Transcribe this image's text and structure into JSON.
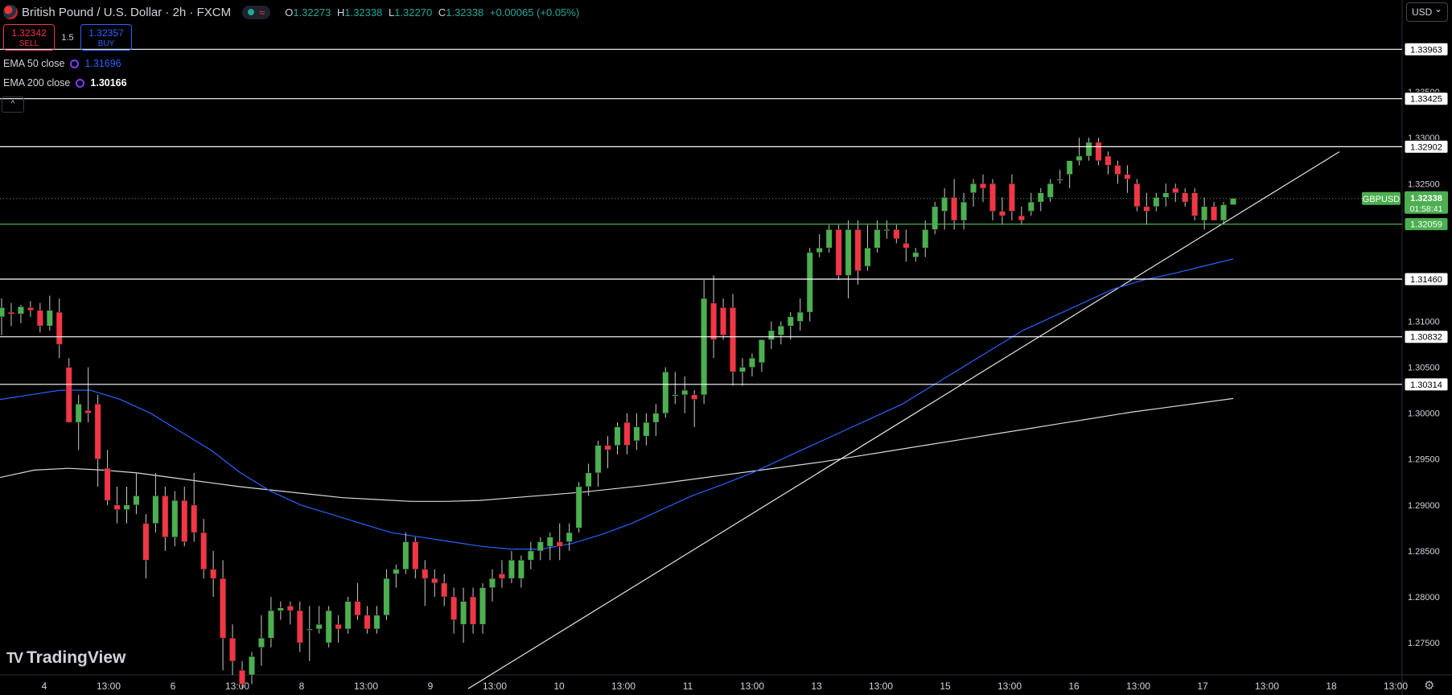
{
  "header": {
    "symbol_title": "British Pound / U.S. Dollar · 2h · FXCM",
    "open_label": "O",
    "open": "1.32273",
    "high_label": "H",
    "high": "1.32338",
    "low_label": "L",
    "low": "1.32270",
    "close_label": "C",
    "close": "1.32338",
    "change": "+0.00065 (+0.05%)",
    "status_icon": "market-open-dot",
    "wave_icon": "≈"
  },
  "trade": {
    "sell_price": "1.32342",
    "sell_label": "SELL",
    "spread": "1.5",
    "buy_price": "1.32357",
    "buy_label": "BUY"
  },
  "indicators": {
    "ema50": {
      "label": "EMA 50 close",
      "value": "1.31696",
      "color": "#2962ff"
    },
    "ema200": {
      "label": "EMA 200 close",
      "value": "1.30166",
      "color": "#ffffff"
    },
    "collapse_icon": "^"
  },
  "currency_button": "USD",
  "logo_text": "TradingView",
  "colors": {
    "up": "#4caf50",
    "down": "#f23645",
    "bg": "#000000",
    "ema50": "#2962ff",
    "ema200": "#d9d9d9",
    "level": "#ffffff",
    "green_level": "#4caf50"
  },
  "chart_data": {
    "type": "candlestick",
    "symbol": "GBPUSD",
    "timeframe": "2h",
    "ylim": [
      1.2715,
      1.345
    ],
    "y_ticks": [
      "1.27500",
      "1.28000",
      "1.28500",
      "1.29000",
      "1.29500",
      "1.30000",
      "1.30500",
      "1.31000",
      "1.32500",
      "1.33000",
      "1.33500"
    ],
    "x_ticks": [
      "4",
      "13:00",
      "6",
      "13:00",
      "8",
      "13:00",
      "9",
      "13:00",
      "10",
      "13:00",
      "11",
      "13:00",
      "13",
      "13:00",
      "15",
      "13:00",
      "16",
      "13:00",
      "17",
      "13:00",
      "18",
      "13:00"
    ],
    "horizontal_levels": [
      {
        "value": "1.33963"
      },
      {
        "value": "1.33425"
      },
      {
        "value": "1.32902"
      },
      {
        "value": "1.32059",
        "color": "#4caf50"
      },
      {
        "value": "1.31460"
      },
      {
        "value": "1.30832"
      },
      {
        "value": "1.30314"
      }
    ],
    "last_price": {
      "symbol": "GBPUSD",
      "value": "1.32338",
      "countdown": "01:58:41"
    },
    "candles": [
      [
        1.3105,
        1.3125,
        1.3085,
        1.3115
      ],
      [
        1.311,
        1.312,
        1.3095,
        1.3108
      ],
      [
        1.3108,
        1.3118,
        1.3098,
        1.3116
      ],
      [
        1.3115,
        1.3122,
        1.3105,
        1.3112
      ],
      [
        1.3112,
        1.312,
        1.3088,
        1.3095
      ],
      [
        1.3095,
        1.3128,
        1.309,
        1.3112
      ],
      [
        1.311,
        1.3125,
        1.306,
        1.3075
      ],
      [
        1.305,
        1.306,
        1.299,
        1.299
      ],
      [
        1.299,
        1.302,
        1.296,
        1.301
      ],
      [
        1.3003,
        1.305,
        1.299,
        1.3
      ],
      [
        1.301,
        1.302,
        1.292,
        1.295
      ],
      [
        1.294,
        1.296,
        1.29,
        1.2905
      ],
      [
        1.29,
        1.292,
        1.288,
        1.2895
      ],
      [
        1.2895,
        1.292,
        1.288,
        1.29
      ],
      [
        1.29,
        1.2935,
        1.289,
        1.291
      ],
      [
        1.288,
        1.289,
        1.282,
        1.284
      ],
      [
        1.288,
        1.2935,
        1.287,
        1.291
      ],
      [
        1.291,
        1.292,
        1.285,
        1.2865
      ],
      [
        1.2865,
        1.2915,
        1.2855,
        1.2905
      ],
      [
        1.2905,
        1.292,
        1.2855,
        1.286
      ],
      [
        1.29,
        1.2935,
        1.286,
        1.287
      ],
      [
        1.287,
        1.2885,
        1.282,
        1.283
      ],
      [
        1.283,
        1.285,
        1.28,
        1.282
      ],
      [
        1.282,
        1.284,
        1.272,
        1.2755
      ],
      [
        1.2755,
        1.277,
        1.2715,
        1.273
      ],
      [
        1.272,
        1.273,
        1.27,
        1.2705
      ],
      [
        1.2715,
        1.274,
        1.2705,
        1.2735
      ],
      [
        1.2745,
        1.278,
        1.2725,
        1.2755
      ],
      [
        1.2755,
        1.28,
        1.2745,
        1.2785
      ],
      [
        1.2785,
        1.2795,
        1.2775,
        1.2788
      ],
      [
        1.279,
        1.2795,
        1.277,
        1.2785
      ],
      [
        1.2785,
        1.2795,
        1.274,
        1.275
      ],
      [
        1.2765,
        1.279,
        1.273,
        1.2765
      ],
      [
        1.2765,
        1.279,
        1.276,
        1.277
      ],
      [
        1.275,
        1.279,
        1.2745,
        1.2785
      ],
      [
        1.277,
        1.278,
        1.275,
        1.2765
      ],
      [
        1.2765,
        1.28,
        1.276,
        1.2795
      ],
      [
        1.2795,
        1.2815,
        1.2775,
        1.278
      ],
      [
        1.278,
        1.279,
        1.276,
        1.2765
      ],
      [
        1.2765,
        1.279,
        1.276,
        1.278
      ],
      [
        1.278,
        1.283,
        1.2775,
        1.282
      ],
      [
        1.2825,
        1.2835,
        1.281,
        1.283
      ],
      [
        1.283,
        1.287,
        1.2825,
        1.286
      ],
      [
        1.286,
        1.2865,
        1.282,
        1.283
      ],
      [
        1.283,
        1.284,
        1.279,
        1.282
      ],
      [
        1.282,
        1.283,
        1.28,
        1.2815
      ],
      [
        1.2815,
        1.2825,
        1.279,
        1.28
      ],
      [
        1.28,
        1.281,
        1.276,
        1.2775
      ],
      [
        1.277,
        1.281,
        1.275,
        1.2795
      ],
      [
        1.28,
        1.281,
        1.276,
        1.277
      ],
      [
        1.277,
        1.2815,
        1.276,
        1.281
      ],
      [
        1.281,
        1.283,
        1.2795,
        1.282
      ],
      [
        1.2825,
        1.284,
        1.281,
        1.282
      ],
      [
        1.282,
        1.285,
        1.2815,
        1.284
      ],
      [
        1.282,
        1.2845,
        1.281,
        1.284
      ],
      [
        1.284,
        1.286,
        1.283,
        1.285
      ],
      [
        1.285,
        1.2865,
        1.284,
        1.286
      ],
      [
        1.2855,
        1.287,
        1.284,
        1.2865
      ],
      [
        1.286,
        1.288,
        1.284,
        1.2855
      ],
      [
        1.286,
        1.288,
        1.285,
        1.287
      ],
      [
        1.2875,
        1.2925,
        1.287,
        1.292
      ],
      [
        1.292,
        1.2945,
        1.291,
        1.2935
      ],
      [
        1.2935,
        1.297,
        1.292,
        1.2965
      ],
      [
        1.2965,
        1.2975,
        1.294,
        1.296
      ],
      [
        1.2965,
        1.299,
        1.2955,
        1.2985
      ],
      [
        1.299,
        1.3,
        1.2955,
        1.2965
      ],
      [
        1.297,
        1.3,
        1.296,
        1.2985
      ],
      [
        1.2975,
        1.3,
        1.2965,
        1.299
      ],
      [
        1.299,
        1.301,
        1.2975,
        1.3
      ],
      [
        1.3,
        1.305,
        1.2995,
        1.3045
      ],
      [
        1.302,
        1.3045,
        1.301,
        1.302
      ],
      [
        1.302,
        1.304,
        1.3,
        1.3025
      ],
      [
        1.302,
        1.3025,
        1.2985,
        1.3015
      ],
      [
        1.302,
        1.3145,
        1.301,
        1.3125
      ],
      [
        1.312,
        1.315,
        1.306,
        1.308
      ],
      [
        1.3115,
        1.3125,
        1.308,
        1.3085
      ],
      [
        1.3115,
        1.313,
        1.303,
        1.3045
      ],
      [
        1.3045,
        1.306,
        1.303,
        1.305
      ],
      [
        1.305,
        1.3065,
        1.304,
        1.306
      ],
      [
        1.3055,
        1.308,
        1.3045,
        1.308
      ],
      [
        1.308,
        1.31,
        1.307,
        1.309
      ],
      [
        1.3085,
        1.31,
        1.3075,
        1.3095
      ],
      [
        1.3095,
        1.311,
        1.308,
        1.3105
      ],
      [
        1.31,
        1.3125,
        1.309,
        1.311
      ],
      [
        1.311,
        1.318,
        1.31,
        1.3175
      ],
      [
        1.3175,
        1.3195,
        1.317,
        1.318
      ],
      [
        1.318,
        1.3205,
        1.3175,
        1.32
      ],
      [
        1.32,
        1.3205,
        1.3145,
        1.315
      ],
      [
        1.315,
        1.321,
        1.3125,
        1.32
      ],
      [
        1.32,
        1.321,
        1.314,
        1.3155
      ],
      [
        1.316,
        1.3205,
        1.3155,
        1.318
      ],
      [
        1.318,
        1.321,
        1.3175,
        1.32
      ],
      [
        1.32,
        1.321,
        1.319,
        1.32
      ],
      [
        1.32,
        1.3205,
        1.3185,
        1.319
      ],
      [
        1.3185,
        1.32,
        1.3165,
        1.318
      ],
      [
        1.317,
        1.318,
        1.3165,
        1.3175
      ],
      [
        1.318,
        1.321,
        1.317,
        1.32
      ],
      [
        1.32,
        1.323,
        1.3195,
        1.3225
      ],
      [
        1.322,
        1.3245,
        1.32,
        1.3235
      ],
      [
        1.3235,
        1.3255,
        1.32,
        1.321
      ],
      [
        1.321,
        1.324,
        1.32,
        1.323
      ],
      [
        1.324,
        1.3255,
        1.3225,
        1.325
      ],
      [
        1.325,
        1.326,
        1.323,
        1.3245
      ],
      [
        1.325,
        1.3255,
        1.321,
        1.322
      ],
      [
        1.322,
        1.3235,
        1.3205,
        1.3215
      ],
      [
        1.325,
        1.326,
        1.321,
        1.322
      ],
      [
        1.3215,
        1.3225,
        1.3205,
        1.321
      ],
      [
        1.322,
        1.324,
        1.3215,
        1.323
      ],
      [
        1.323,
        1.3245,
        1.322,
        1.324
      ],
      [
        1.3235,
        1.3255,
        1.323,
        1.325
      ],
      [
        1.3255,
        1.3265,
        1.325,
        1.3255
      ],
      [
        1.326,
        1.3275,
        1.3245,
        1.3275
      ],
      [
        1.3275,
        1.33,
        1.327,
        1.328
      ],
      [
        1.328,
        1.33,
        1.3275,
        1.3295
      ],
      [
        1.3295,
        1.33,
        1.327,
        1.3275
      ],
      [
        1.328,
        1.3285,
        1.326,
        1.327
      ],
      [
        1.327,
        1.3275,
        1.325,
        1.326
      ],
      [
        1.326,
        1.327,
        1.324,
        1.3255
      ],
      [
        1.325,
        1.3255,
        1.322,
        1.3225
      ],
      [
        1.3225,
        1.324,
        1.3205,
        1.322
      ],
      [
        1.3225,
        1.324,
        1.322,
        1.3235
      ],
      [
        1.3235,
        1.325,
        1.3225,
        1.324
      ],
      [
        1.3245,
        1.325,
        1.323,
        1.324
      ],
      [
        1.324,
        1.3245,
        1.3225,
        1.323
      ],
      [
        1.324,
        1.3245,
        1.321,
        1.3215
      ],
      [
        1.321,
        1.3235,
        1.32,
        1.3225
      ],
      [
        1.3225,
        1.323,
        1.321,
        1.321
      ],
      [
        1.321,
        1.323,
        1.3205,
        1.3227
      ],
      [
        1.3227,
        1.3234,
        1.3227,
        1.3234
      ]
    ],
    "ema50": [
      1.3015,
      1.302,
      1.3025,
      1.3025,
      1.3015,
      1.3,
      1.298,
      1.296,
      1.2935,
      1.2915,
      1.29,
      1.289,
      1.288,
      1.287,
      1.2865,
      1.286,
      1.2855,
      1.2852,
      1.2852,
      1.2858,
      1.2868,
      1.288,
      1.2895,
      1.291,
      1.2922,
      1.2935,
      1.295,
      1.2965,
      1.298,
      1.2995,
      1.301,
      1.303,
      1.305,
      1.307,
      1.309,
      1.3105,
      1.312,
      1.3135,
      1.3145,
      1.3152,
      1.316,
      1.3168
    ],
    "ema200": [
      1.293,
      1.2938,
      1.294,
      1.2938,
      1.2935,
      1.293,
      1.2925,
      1.292,
      1.2916,
      1.2912,
      1.2908,
      1.2906,
      1.2904,
      1.2904,
      1.2905,
      1.2908,
      1.2911,
      1.2914,
      1.2918,
      1.2922,
      1.2927,
      1.2932,
      1.2937,
      1.2942,
      1.2947,
      1.2953,
      1.2959,
      1.2965,
      1.2971,
      1.2977,
      1.2983,
      1.2989,
      1.2995,
      1.3001,
      1.3006,
      1.3011,
      1.3016
    ],
    "trendline": {
      "from": [
        1.27
      ],
      "to": [
        1.329
      ]
    }
  }
}
